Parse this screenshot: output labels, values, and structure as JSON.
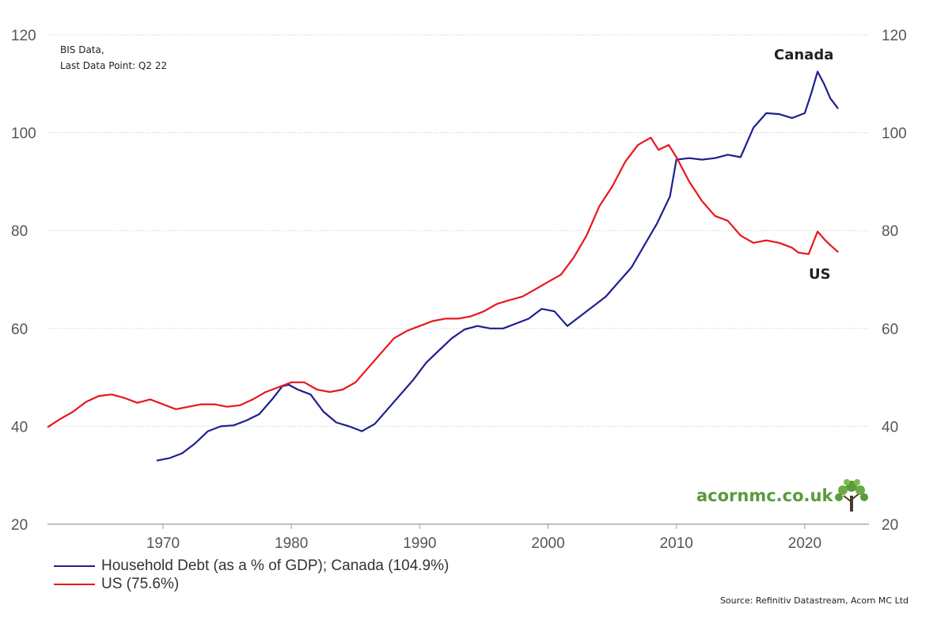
{
  "note": {
    "line1": "BIS Data,",
    "line2": "Last Data Point: Q2 22"
  },
  "logo": {
    "text": "acornmc.co.uk",
    "icon": "tree-icon",
    "color": "#5a9a3c"
  },
  "source": "Source: Refinitiv Datastream, Acorn MC Ltd",
  "legend": [
    {
      "label": "Household Debt (as a % of GDP); Canada (104.9%)",
      "color": "#1f1f8f"
    },
    {
      "label": "US (75.6%)",
      "color": "#e8161b"
    }
  ],
  "chart_data": {
    "type": "line",
    "xlim": [
      1961,
      2025
    ],
    "ylim": [
      20,
      120
    ],
    "x_ticks": [
      1970,
      1980,
      1990,
      2000,
      2010,
      2020
    ],
    "y_ticks": [
      20,
      40,
      60,
      80,
      100,
      120
    ],
    "dual_axis": true,
    "grid": "horizontal dotted",
    "series_labels": {
      "canada": "Canada",
      "us": "US"
    },
    "series": [
      {
        "name": "Canada",
        "color": "#1f1f8f",
        "points": [
          [
            1969.5,
            33
          ],
          [
            1970.5,
            33.5
          ],
          [
            1971.5,
            34.5
          ],
          [
            1972.5,
            36.5
          ],
          [
            1973.5,
            39
          ],
          [
            1974.5,
            40
          ],
          [
            1975.5,
            40.2
          ],
          [
            1976.5,
            41.2
          ],
          [
            1977.5,
            42.5
          ],
          [
            1978.5,
            45.5
          ],
          [
            1979.3,
            48.2
          ],
          [
            1979.8,
            48.5
          ],
          [
            1980.5,
            47.5
          ],
          [
            1981.5,
            46.5
          ],
          [
            1982.5,
            43
          ],
          [
            1983.5,
            40.8
          ],
          [
            1984.5,
            40
          ],
          [
            1985.5,
            39
          ],
          [
            1986.5,
            40.5
          ],
          [
            1987.5,
            43.5
          ],
          [
            1988.5,
            46.5
          ],
          [
            1989.5,
            49.5
          ],
          [
            1990.5,
            53
          ],
          [
            1991.5,
            55.5
          ],
          [
            1992.5,
            58
          ],
          [
            1993.5,
            59.8
          ],
          [
            1994.5,
            60.5
          ],
          [
            1995.5,
            60
          ],
          [
            1996.5,
            60
          ],
          [
            1997.5,
            61
          ],
          [
            1998.5,
            62
          ],
          [
            1999.5,
            64
          ],
          [
            2000.5,
            63.5
          ],
          [
            2001.5,
            60.5
          ],
          [
            2002.5,
            62.5
          ],
          [
            2003.5,
            64.5
          ],
          [
            2004.5,
            66.5
          ],
          [
            2005.5,
            69.5
          ],
          [
            2006.5,
            72.5
          ],
          [
            2007.5,
            77
          ],
          [
            2008.5,
            81.5
          ],
          [
            2009.5,
            87
          ],
          [
            2010,
            94.5
          ],
          [
            2011,
            94.8
          ],
          [
            2012,
            94.5
          ],
          [
            2013,
            94.8
          ],
          [
            2014,
            95.5
          ],
          [
            2015,
            95
          ],
          [
            2016,
            101
          ],
          [
            2017,
            104
          ],
          [
            2018,
            103.8
          ],
          [
            2019,
            103
          ],
          [
            2020,
            104
          ],
          [
            2020.5,
            108
          ],
          [
            2021,
            112.5
          ],
          [
            2021.5,
            110
          ],
          [
            2022,
            107
          ],
          [
            2022.6,
            104.9
          ]
        ]
      },
      {
        "name": "US",
        "color": "#e8161b",
        "points": [
          [
            1961,
            39.8
          ],
          [
            1962,
            41.5
          ],
          [
            1963,
            43
          ],
          [
            1964,
            45
          ],
          [
            1965,
            46.2
          ],
          [
            1966,
            46.5
          ],
          [
            1967,
            45.8
          ],
          [
            1968,
            44.8
          ],
          [
            1969,
            45.5
          ],
          [
            1970,
            44.5
          ],
          [
            1971,
            43.5
          ],
          [
            1972,
            44
          ],
          [
            1973,
            44.5
          ],
          [
            1974,
            44.5
          ],
          [
            1975,
            44
          ],
          [
            1976,
            44.3
          ],
          [
            1977,
            45.5
          ],
          [
            1978,
            47
          ],
          [
            1979,
            48
          ],
          [
            1980,
            49
          ],
          [
            1981,
            49
          ],
          [
            1982,
            47.5
          ],
          [
            1983,
            47
          ],
          [
            1984,
            47.5
          ],
          [
            1985,
            49
          ],
          [
            1986,
            52
          ],
          [
            1987,
            55
          ],
          [
            1988,
            58
          ],
          [
            1989,
            59.5
          ],
          [
            1990,
            60.5
          ],
          [
            1991,
            61.5
          ],
          [
            1992,
            62
          ],
          [
            1993,
            62
          ],
          [
            1994,
            62.5
          ],
          [
            1995,
            63.5
          ],
          [
            1996,
            65
          ],
          [
            1997,
            65.8
          ],
          [
            1998,
            66.5
          ],
          [
            1999,
            68
          ],
          [
            2000,
            69.5
          ],
          [
            2001,
            71
          ],
          [
            2002,
            74.5
          ],
          [
            2003,
            79
          ],
          [
            2004,
            85
          ],
          [
            2005,
            89
          ],
          [
            2006,
            94
          ],
          [
            2007,
            97.5
          ],
          [
            2008,
            99
          ],
          [
            2008.6,
            96.5
          ],
          [
            2009.4,
            97.5
          ],
          [
            2010,
            95
          ],
          [
            2011,
            90
          ],
          [
            2012,
            86
          ],
          [
            2013,
            83
          ],
          [
            2014,
            82
          ],
          [
            2015,
            79
          ],
          [
            2016,
            77.5
          ],
          [
            2017,
            78
          ],
          [
            2018,
            77.5
          ],
          [
            2019,
            76.5
          ],
          [
            2019.5,
            75.5
          ],
          [
            2020.3,
            75.2
          ],
          [
            2021,
            79.8
          ],
          [
            2021.6,
            78
          ],
          [
            2022,
            77
          ],
          [
            2022.6,
            75.6
          ]
        ]
      }
    ]
  }
}
